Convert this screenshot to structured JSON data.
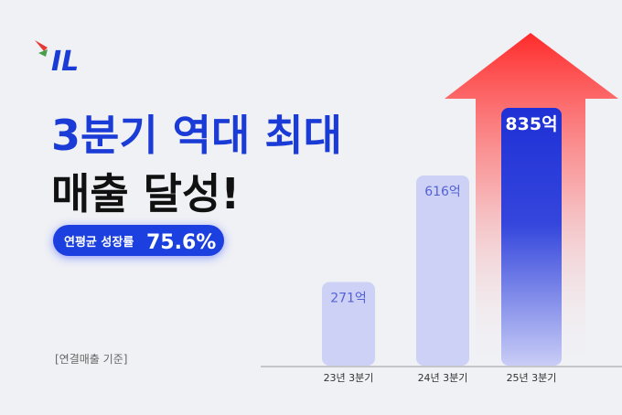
{
  "logo": "IL",
  "chart_data": {
    "type": "bar",
    "title": "3분기 역대 최대",
    "subtitle": "매출 달성!",
    "badge": {
      "label": "연평균 성장률",
      "value": "75.6%"
    },
    "note": "[연결매출 기준]",
    "categories": [
      "23년 3분기",
      "24년 3분기",
      "25년 3분기"
    ],
    "values": [
      271,
      616,
      835
    ],
    "value_labels": [
      "271억",
      "616억",
      "835억"
    ],
    "colors": [
      "#cdd1f6",
      "#cdd1f6",
      "#2234d8"
    ]
  }
}
